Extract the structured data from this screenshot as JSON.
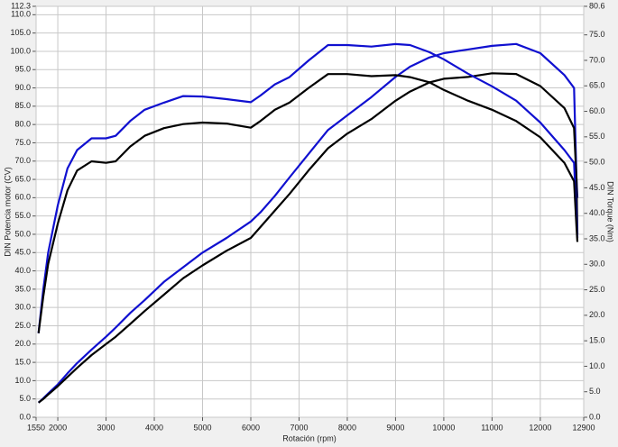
{
  "chart_data": {
    "type": "line",
    "xlabel": "Rotación (rpm)",
    "ylabel": "DIN Potencia motor (CV)",
    "y2label": "DIN Torque (Nm)",
    "x": [
      1600,
      1700,
      1800,
      2000,
      2200,
      2400,
      2700,
      3000,
      3200,
      3500,
      3800,
      4200,
      4600,
      5000,
      5500,
      6000,
      6200,
      6500,
      6800,
      7200,
      7600,
      8000,
      8500,
      9000,
      9300,
      9700,
      10000,
      10500,
      11000,
      11500,
      12000,
      12500,
      12700,
      12750,
      12770
    ],
    "series": [
      {
        "color": "#1010d0",
        "values": [
          4,
          5.2,
          6.5,
          9,
          12,
          14.8,
          18.5,
          22,
          24.5,
          28.5,
          32,
          37,
          41,
          45,
          49,
          53.5,
          56,
          60.5,
          65.5,
          72,
          78.5,
          82.5,
          87.5,
          93,
          95.8,
          98.3,
          99.5,
          100.5,
          101.5,
          102,
          99.5,
          93.5,
          90,
          65,
          60
        ]
      },
      {
        "color": "#000000",
        "values": [
          4,
          5,
          6.2,
          8.5,
          11,
          13.5,
          17,
          20,
          22,
          25.5,
          29,
          33.5,
          38,
          41.5,
          45.5,
          49,
          52,
          56.5,
          61,
          67.5,
          73.5,
          77.5,
          81.5,
          86.5,
          89,
          91.5,
          92.5,
          93,
          94,
          93.8,
          90.5,
          84.5,
          79,
          65,
          50
        ]
      },
      {
        "color": "#1010d0",
        "axis": "y2",
        "values": [
          16.5,
          25.1,
          32.3,
          41.6,
          48.8,
          52.4,
          54.7,
          54.7,
          55.2,
          58.1,
          60.3,
          61.7,
          63.0,
          62.9,
          62.4,
          61.8,
          63.1,
          65.3,
          66.7,
          70.0,
          73.0,
          73.0,
          72.7,
          73.2,
          73.0,
          71.6,
          70.2,
          67.4,
          64.9,
          62.1,
          57.8,
          52.4,
          49.9,
          39.5,
          35.2
        ]
      },
      {
        "color": "#000000",
        "axis": "y2",
        "values": [
          16.5,
          23.7,
          30.1,
          38.0,
          44.5,
          48.4,
          50.2,
          49.9,
          50.2,
          53.1,
          55.2,
          56.7,
          57.5,
          57.8,
          57.6,
          56.8,
          58.1,
          60.3,
          61.7,
          64.6,
          67.3,
          67.3,
          66.9,
          67.1,
          66.7,
          65.7,
          64.2,
          62.1,
          60.3,
          58.1,
          54.9,
          49.9,
          46.3,
          37.3,
          34.4
        ]
      }
    ],
    "xlim": [
      1550,
      12900
    ],
    "xticks": [
      1550,
      2000,
      3000,
      4000,
      5000,
      6000,
      7000,
      8000,
      9000,
      10000,
      11000,
      12000,
      12900
    ],
    "ylim": [
      0,
      112.3
    ],
    "yticks": [
      {
        "value": 0,
        "label": "0.0"
      },
      {
        "value": 5,
        "label": "5.0"
      },
      {
        "value": 10,
        "label": "10.0"
      },
      {
        "value": 15,
        "label": "15.0"
      },
      {
        "value": 20,
        "label": "20.0"
      },
      {
        "value": 25,
        "label": "25.0"
      },
      {
        "value": 30,
        "label": "30.0"
      },
      {
        "value": 35,
        "label": "35.0"
      },
      {
        "value": 40,
        "label": "40.0"
      },
      {
        "value": 45,
        "label": "45.0"
      },
      {
        "value": 50,
        "label": "50.0"
      },
      {
        "value": 55,
        "label": "55.0"
      },
      {
        "value": 60,
        "label": "60.0"
      },
      {
        "value": 65,
        "label": "65.0"
      },
      {
        "value": 70,
        "label": "70.0"
      },
      {
        "value": 75,
        "label": "75.0"
      },
      {
        "value": 80,
        "label": "80.0"
      },
      {
        "value": 85,
        "label": "85.0"
      },
      {
        "value": 90,
        "label": "90.0"
      },
      {
        "value": 95,
        "label": "95.0"
      },
      {
        "value": 100,
        "label": "100.0"
      },
      {
        "value": 105,
        "label": "105.0"
      },
      {
        "value": 110,
        "label": "110.0"
      },
      112.3
    ],
    "y2lim": [
      0,
      80.6
    ],
    "y2ticks": [
      {
        "value": 0,
        "label": "0.0"
      },
      {
        "value": 5,
        "label": "5.0"
      },
      {
        "value": 10,
        "label": "10.0"
      },
      {
        "value": 15,
        "label": "15.0"
      },
      {
        "value": 20,
        "label": "20.0"
      },
      {
        "value": 25,
        "label": "25.0"
      },
      {
        "value": 30,
        "label": "30.0"
      },
      {
        "value": 35,
        "label": "35.0"
      },
      {
        "value": 40,
        "label": "40.0"
      },
      {
        "value": 45,
        "label": "45.0"
      },
      {
        "value": 50,
        "label": "50.0"
      },
      {
        "value": 55,
        "label": "55.0"
      },
      {
        "value": 60,
        "label": "60.0"
      },
      {
        "value": 65,
        "label": "65.0"
      },
      {
        "value": 70,
        "label": "70.0"
      },
      {
        "value": 75,
        "label": "75.0"
      },
      80.6
    ],
    "grid": true
  }
}
